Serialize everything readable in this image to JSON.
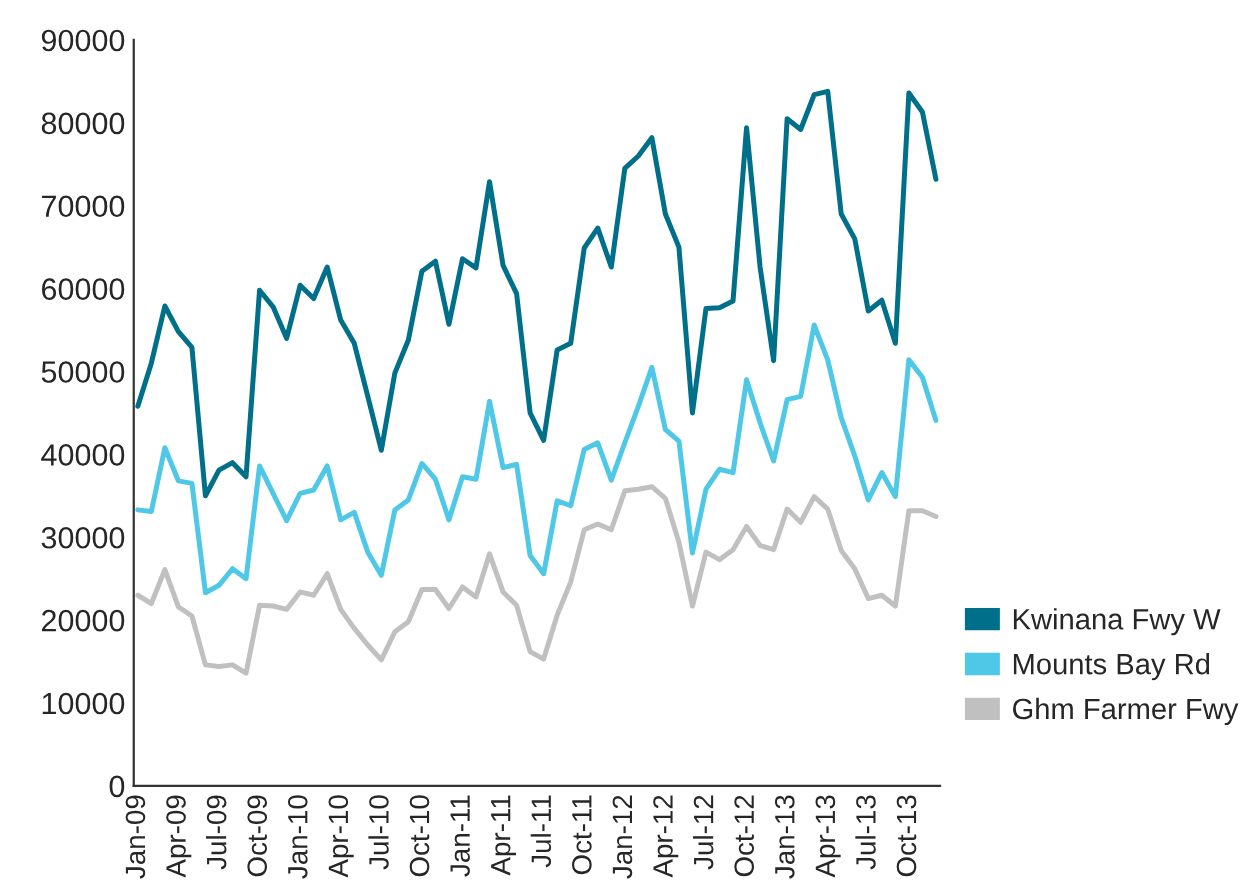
{
  "chart_data": {
    "type": "line",
    "categories": [
      "Jan-09",
      null,
      null,
      "Apr-09",
      null,
      null,
      "Jul-09",
      null,
      null,
      "Oct-09",
      null,
      null,
      "Jan-10",
      null,
      null,
      "Apr-10",
      null,
      null,
      "Jul-10",
      null,
      null,
      "Oct-10",
      null,
      null,
      "Jan-11",
      null,
      null,
      "Apr-11",
      null,
      null,
      "Jul-11",
      null,
      null,
      "Oct-11",
      null,
      null,
      "Jan-12",
      null,
      null,
      "Apr-12",
      null,
      null,
      "Jul-12",
      null,
      null,
      "Oct-12",
      null,
      null,
      "Jan-13",
      null,
      null,
      "Apr-13",
      null,
      null,
      "Jul-13",
      null,
      null,
      "Oct-13",
      null,
      null
    ],
    "series": [
      {
        "name": "Kwinana Fwy W",
        "color": "#006f8a",
        "values": [
          45800,
          51000,
          57900,
          54800,
          52900,
          35000,
          38100,
          39000,
          37300,
          59800,
          57800,
          54000,
          60400,
          58800,
          62600,
          56200,
          53400,
          47000,
          40500,
          49800,
          53800,
          62100,
          63300,
          55700,
          63600,
          62500,
          72900,
          62800,
          59400,
          45000,
          41700,
          52600,
          53400,
          64900,
          67300,
          62600,
          74500,
          76000,
          78200,
          69000,
          65000,
          45000,
          57600,
          57700,
          58500,
          79400,
          62600,
          51300,
          80500,
          79200,
          83400,
          83800,
          69000,
          66000,
          57300,
          58600,
          53400,
          83600,
          81300,
          73200
        ]
      },
      {
        "name": "Mounts Bay Rd",
        "color": "#4fc8e8",
        "values": [
          33300,
          33100,
          40800,
          36800,
          36500,
          23300,
          24200,
          26200,
          25000,
          38600,
          35300,
          32000,
          35300,
          35700,
          38600,
          32100,
          33000,
          28200,
          25400,
          33300,
          34500,
          38900,
          37000,
          32100,
          37300,
          37000,
          46400,
          38400,
          38800,
          27800,
          25600,
          34400,
          33800,
          40600,
          41400,
          36900,
          41400,
          45800,
          50500,
          43000,
          41600,
          28100,
          35800,
          38200,
          37800,
          49000,
          43800,
          39200,
          46600,
          47000,
          55600,
          51400,
          44400,
          39800,
          34500,
          37800,
          34900,
          51400,
          49300,
          44100
        ]
      },
      {
        "name": "Ghm Farmer Fwy",
        "color": "#c0c0c0",
        "values": [
          23000,
          22000,
          26100,
          21600,
          20500,
          14600,
          14400,
          14600,
          13600,
          21800,
          21700,
          21300,
          23400,
          23000,
          25600,
          21300,
          19000,
          17000,
          15200,
          18600,
          19800,
          23700,
          23700,
          21400,
          24000,
          22800,
          28000,
          23400,
          21800,
          16200,
          15300,
          20600,
          24600,
          30900,
          31600,
          30900,
          35600,
          35800,
          36100,
          34700,
          29400,
          21700,
          28200,
          27300,
          28500,
          31300,
          29000,
          28500,
          33400,
          31800,
          34900,
          33400,
          28400,
          26200,
          22600,
          23000,
          21700,
          33200,
          33200,
          32500
        ]
      }
    ],
    "ylim": [
      0,
      90000
    ],
    "yticks": [
      0,
      10000,
      20000,
      30000,
      40000,
      50000,
      60000,
      70000,
      80000,
      90000
    ],
    "grid": false,
    "legend": "right",
    "marker": "none",
    "line_style": "solid"
  }
}
